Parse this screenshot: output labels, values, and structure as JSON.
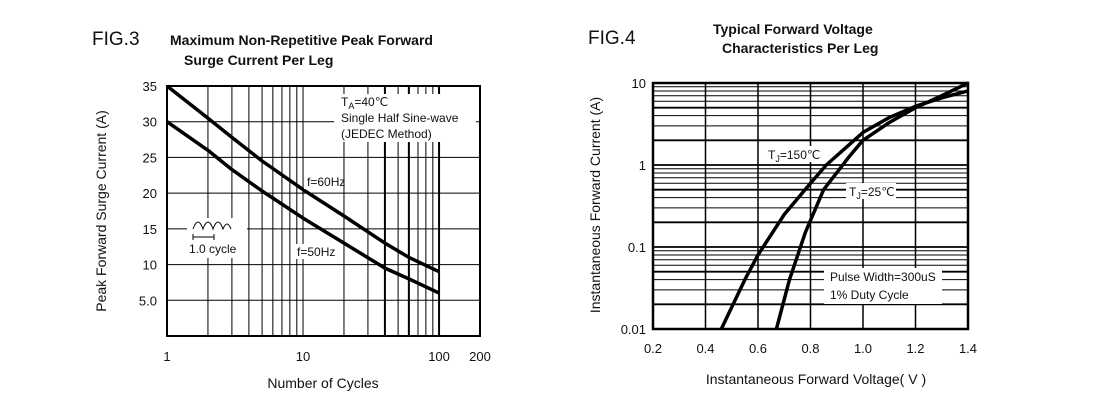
{
  "chart_data": [
    {
      "type": "line",
      "figure_label": "FIG.3",
      "title": [
        "Maximum Non-Repetitive Peak Forward",
        "Surge Current Per Leg"
      ],
      "xlabel": "Number of Cycles",
      "ylabel": "Peak Forward Surge Current (A)",
      "xscale": "log",
      "xlim": [
        1,
        200
      ],
      "ylim": [
        0,
        35
      ],
      "xticks": [
        {
          "v": 1,
          "label": "1"
        },
        {
          "v": 10,
          "label": "10"
        },
        {
          "v": 100,
          "label": "100"
        },
        {
          "v": 200,
          "label": "200"
        }
      ],
      "yticks": [
        {
          "v": 5,
          "label": "5.0"
        },
        {
          "v": 10,
          "label": "10"
        },
        {
          "v": 15,
          "label": "15"
        },
        {
          "v": 20,
          "label": "20"
        },
        {
          "v": 25,
          "label": "25"
        },
        {
          "v": 30,
          "label": "30"
        },
        {
          "v": 35,
          "label": "35"
        }
      ],
      "grid": true,
      "series": [
        {
          "name": "f=60Hz",
          "x": [
            1,
            2,
            3,
            5,
            10,
            20,
            40,
            60,
            100
          ],
          "y": [
            35,
            30.5,
            27.8,
            24.5,
            20.5,
            16.8,
            13,
            11,
            9
          ]
        },
        {
          "name": "f=50Hz",
          "x": [
            1,
            2,
            3,
            5,
            10,
            20,
            40,
            60,
            100
          ],
          "y": [
            30,
            26,
            23.3,
            20.3,
            16.5,
            13,
            9.5,
            8,
            6
          ]
        }
      ],
      "annotations": {
        "conditions": [
          "TA=40℃",
          "Single Half Sine-wave",
          "(JEDEC Method)"
        ],
        "ta_prefix": "T",
        "ta_sub": "A",
        "ta_rest": "=40℃",
        "cycle_label": "1.0 cycle"
      }
    },
    {
      "type": "line",
      "figure_label": "FIG.4",
      "title": [
        "Typical Forward Voltage",
        "Characteristics Per Leg"
      ],
      "xlabel": "Instantaneous Forward Voltage( V )",
      "ylabel": "Instantaneous Forward Current (A)",
      "yscale": "log",
      "xlim": [
        0.2,
        1.4
      ],
      "ylim": [
        0.01,
        10
      ],
      "xticks": [
        {
          "v": 0.2,
          "label": "0.2"
        },
        {
          "v": 0.4,
          "label": "0.4"
        },
        {
          "v": 0.6,
          "label": "0.6"
        },
        {
          "v": 0.8,
          "label": "0.8"
        },
        {
          "v": 1.0,
          "label": "1.0"
        },
        {
          "v": 1.2,
          "label": "1.2"
        },
        {
          "v": 1.4,
          "label": "1.4"
        }
      ],
      "yticks": [
        {
          "v": 0.01,
          "label": "0.01"
        },
        {
          "v": 0.1,
          "label": "0.1"
        },
        {
          "v": 1,
          "label": "1"
        },
        {
          "v": 10,
          "label": "10"
        }
      ],
      "grid": true,
      "series": [
        {
          "name": "TJ=150℃",
          "x": [
            0.46,
            0.55,
            0.6,
            0.7,
            0.8,
            0.86,
            0.95,
            1.0,
            1.1,
            1.2,
            1.3,
            1.4
          ],
          "y": [
            0.01,
            0.04,
            0.08,
            0.25,
            0.6,
            1,
            1.8,
            2.5,
            3.8,
            5.2,
            6.6,
            8
          ]
        },
        {
          "name": "TJ=25℃",
          "x": [
            0.67,
            0.72,
            0.78,
            0.85,
            0.95,
            1.0,
            1.1,
            1.2,
            1.3,
            1.4
          ],
          "y": [
            0.01,
            0.04,
            0.15,
            0.5,
            1.3,
            2,
            3.3,
            5,
            7,
            10
          ]
        }
      ],
      "annotations": {
        "tj150": {
          "prefix": "T",
          "sub": "J",
          "rest": "=150℃"
        },
        "tj25": {
          "prefix": "T",
          "sub": "J",
          "rest": "=25℃"
        },
        "pulse": [
          "Pulse Width=300uS",
          "1% Duty Cycle"
        ]
      }
    }
  ]
}
